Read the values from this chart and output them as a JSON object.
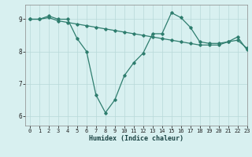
{
  "title": "",
  "xlabel": "Humidex (Indice chaleur)",
  "ylabel": "",
  "bg_color": "#d8f0f0",
  "line_color": "#2e7d6e",
  "grid_color": "#b8d8d8",
  "spine_color": "#888888",
  "xlim": [
    -0.5,
    23
  ],
  "ylim": [
    5.7,
    9.45
  ],
  "yticks": [
    6,
    7,
    8,
    9
  ],
  "xticks": [
    0,
    1,
    2,
    3,
    4,
    5,
    6,
    7,
    8,
    9,
    10,
    11,
    12,
    13,
    14,
    15,
    16,
    17,
    18,
    19,
    20,
    21,
    22,
    23
  ],
  "series1_x": [
    0,
    1,
    2,
    3,
    4,
    5,
    6,
    7,
    8,
    9,
    10,
    11,
    12,
    13,
    14,
    15,
    16,
    17,
    18,
    19,
    20,
    21,
    22,
    23
  ],
  "series1_y": [
    9.0,
    9.0,
    9.1,
    9.0,
    9.0,
    8.4,
    8.0,
    6.65,
    6.1,
    6.5,
    7.25,
    7.65,
    7.95,
    8.55,
    8.55,
    9.2,
    9.05,
    8.75,
    8.3,
    8.25,
    8.25,
    8.3,
    8.45,
    8.05
  ],
  "series2_x": [
    0,
    1,
    2,
    3,
    4,
    5,
    6,
    7,
    8,
    9,
    10,
    11,
    12,
    13,
    14,
    15,
    16,
    17,
    18,
    19,
    20,
    21,
    22,
    23
  ],
  "series2_y": [
    9.0,
    9.0,
    9.05,
    8.95,
    8.9,
    8.85,
    8.8,
    8.75,
    8.7,
    8.65,
    8.6,
    8.55,
    8.5,
    8.45,
    8.4,
    8.35,
    8.3,
    8.25,
    8.2,
    8.2,
    8.2,
    8.3,
    8.35,
    8.1
  ],
  "marker_size": 1.8,
  "line_width": 0.9
}
